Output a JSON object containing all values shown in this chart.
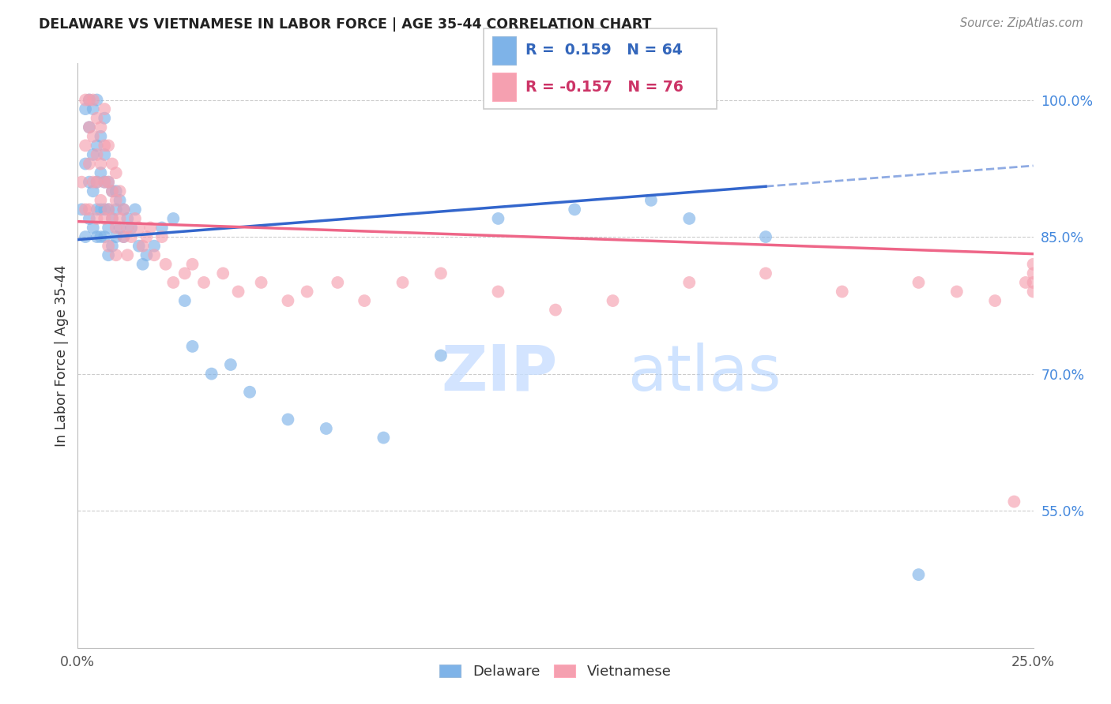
{
  "title": "DELAWARE VS VIETNAMESE IN LABOR FORCE | AGE 35-44 CORRELATION CHART",
  "source": "Source: ZipAtlas.com",
  "ylabel": "In Labor Force | Age 35-44",
  "xlim": [
    0.0,
    0.25
  ],
  "ylim": [
    0.4,
    1.04
  ],
  "yticks": [
    0.55,
    0.7,
    0.85,
    1.0
  ],
  "ytick_labels": [
    "55.0%",
    "70.0%",
    "85.0%",
    "100.0%"
  ],
  "legend_blue_r": "0.159",
  "legend_blue_n": "64",
  "legend_pink_r": "-0.157",
  "legend_pink_n": "76",
  "blue_color": "#7EB3E8",
  "pink_color": "#F5A0B0",
  "blue_line_color": "#3366CC",
  "pink_line_color": "#EE6688",
  "blue_line_solid_end": 0.18,
  "del_x": [
    0.001,
    0.002,
    0.002,
    0.002,
    0.003,
    0.003,
    0.003,
    0.003,
    0.004,
    0.004,
    0.004,
    0.004,
    0.005,
    0.005,
    0.005,
    0.005,
    0.005,
    0.006,
    0.006,
    0.006,
    0.006,
    0.007,
    0.007,
    0.007,
    0.007,
    0.007,
    0.008,
    0.008,
    0.008,
    0.008,
    0.009,
    0.009,
    0.009,
    0.01,
    0.01,
    0.01,
    0.011,
    0.011,
    0.012,
    0.012,
    0.013,
    0.014,
    0.015,
    0.016,
    0.017,
    0.018,
    0.02,
    0.022,
    0.025,
    0.028,
    0.03,
    0.035,
    0.04,
    0.045,
    0.055,
    0.065,
    0.08,
    0.095,
    0.11,
    0.13,
    0.15,
    0.16,
    0.18,
    0.22
  ],
  "del_y": [
    0.88,
    0.99,
    0.93,
    0.85,
    1.0,
    0.97,
    0.91,
    0.87,
    0.99,
    0.94,
    0.9,
    0.86,
    1.0,
    0.95,
    0.91,
    0.88,
    0.85,
    0.96,
    0.92,
    0.88,
    0.85,
    0.98,
    0.94,
    0.91,
    0.88,
    0.85,
    0.91,
    0.88,
    0.86,
    0.83,
    0.9,
    0.87,
    0.84,
    0.9,
    0.88,
    0.85,
    0.89,
    0.86,
    0.88,
    0.85,
    0.87,
    0.86,
    0.88,
    0.84,
    0.82,
    0.83,
    0.84,
    0.86,
    0.87,
    0.78,
    0.73,
    0.7,
    0.71,
    0.68,
    0.65,
    0.64,
    0.63,
    0.72,
    0.87,
    0.88,
    0.89,
    0.87,
    0.85,
    0.48
  ],
  "viet_x": [
    0.001,
    0.002,
    0.002,
    0.002,
    0.003,
    0.003,
    0.003,
    0.003,
    0.004,
    0.004,
    0.004,
    0.005,
    0.005,
    0.005,
    0.005,
    0.006,
    0.006,
    0.006,
    0.007,
    0.007,
    0.007,
    0.007,
    0.008,
    0.008,
    0.008,
    0.008,
    0.009,
    0.009,
    0.009,
    0.01,
    0.01,
    0.01,
    0.01,
    0.011,
    0.011,
    0.012,
    0.012,
    0.013,
    0.013,
    0.014,
    0.015,
    0.016,
    0.017,
    0.018,
    0.019,
    0.02,
    0.022,
    0.023,
    0.025,
    0.028,
    0.03,
    0.033,
    0.038,
    0.042,
    0.048,
    0.055,
    0.06,
    0.068,
    0.075,
    0.085,
    0.095,
    0.11,
    0.125,
    0.14,
    0.16,
    0.18,
    0.2,
    0.22,
    0.23,
    0.24,
    0.245,
    0.248,
    0.25,
    0.25,
    0.25,
    0.25
  ],
  "viet_y": [
    0.91,
    1.0,
    0.95,
    0.88,
    1.0,
    0.97,
    0.93,
    0.88,
    1.0,
    0.96,
    0.91,
    0.98,
    0.94,
    0.91,
    0.87,
    0.97,
    0.93,
    0.89,
    0.99,
    0.95,
    0.91,
    0.87,
    0.95,
    0.91,
    0.88,
    0.84,
    0.93,
    0.9,
    0.87,
    0.92,
    0.89,
    0.86,
    0.83,
    0.9,
    0.87,
    0.88,
    0.85,
    0.86,
    0.83,
    0.85,
    0.87,
    0.86,
    0.84,
    0.85,
    0.86,
    0.83,
    0.85,
    0.82,
    0.8,
    0.81,
    0.82,
    0.8,
    0.81,
    0.79,
    0.8,
    0.78,
    0.79,
    0.8,
    0.78,
    0.8,
    0.81,
    0.79,
    0.77,
    0.78,
    0.8,
    0.81,
    0.79,
    0.8,
    0.79,
    0.78,
    0.56,
    0.8,
    0.82,
    0.79,
    0.81,
    0.8
  ]
}
